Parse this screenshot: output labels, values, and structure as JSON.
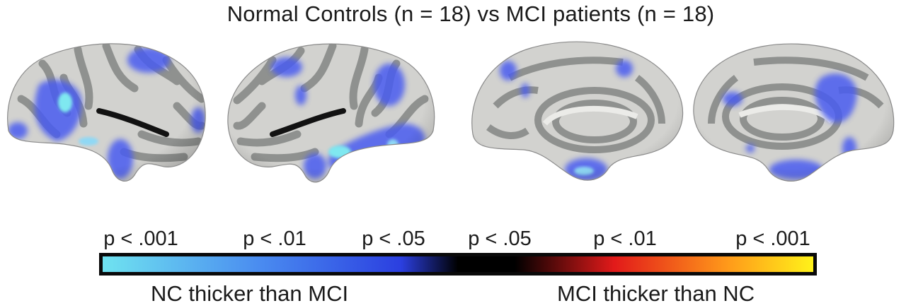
{
  "title": "Normal Controls (n = 18) vs MCI patients (n = 18)",
  "brain_views": [
    {
      "name": "left-lateral"
    },
    {
      "name": "right-lateral"
    },
    {
      "name": "left-medial"
    },
    {
      "name": "right-medial"
    }
  ],
  "colorbar": {
    "labels": [
      "p < .001",
      "p < .01",
      "p < .05",
      "p < .05",
      "p < .01",
      "p < .001"
    ],
    "gradient_stops": [
      "#6fe3f0",
      "#4a8cf0",
      "#2b3fe0",
      "#000000",
      "#000000",
      "#e21a1a",
      "#ff9a1a",
      "#fff21a"
    ],
    "left_caption": "NC thicker than MCI",
    "right_caption": "MCI thicker than NC"
  },
  "colors": {
    "cortex_light": "#d2d2cf",
    "cortex_dark": "#8f918f",
    "effect_blue": "#4a5cf0",
    "effect_cyan": "#7fe8f0"
  }
}
